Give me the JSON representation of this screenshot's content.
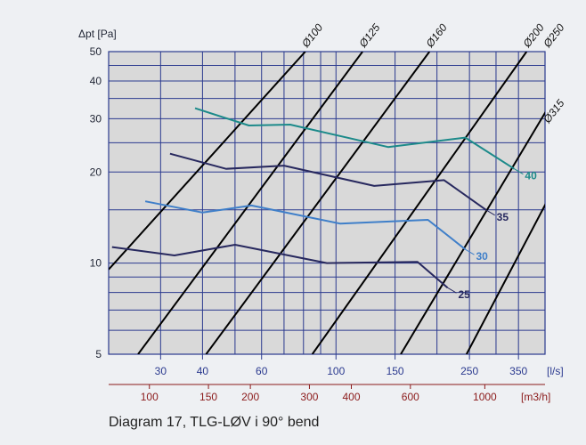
{
  "caption": "Diagram 17, TLG-LØV i 90° bend",
  "colors": {
    "plot_bg": "#d9d9d9",
    "grid": "#2b3a8f",
    "diameter_lines": "#000000",
    "x_ls_ticks": "#2b3a8f",
    "x_m3h_ticks": "#8b1a1a",
    "curve_25": "#27285e",
    "curve_30": "#3f7fc9",
    "curve_35": "#27285e",
    "curve_40": "#1c8a8a"
  },
  "chart_data": {
    "type": "line",
    "ylabel": "Δpt [Pa]",
    "xlabel_ls": "[l/s]",
    "xlabel_m3h": "[m3/h]",
    "x_scale": "log",
    "y_scale": "log",
    "xlim": [
      21,
      420
    ],
    "ylim": [
      5,
      50
    ],
    "y_ticks": [
      5,
      10,
      20,
      30,
      40,
      50
    ],
    "y_grid": [
      6,
      7,
      8,
      9,
      15,
      25,
      35,
      45
    ],
    "x_ticks_ls": [
      30,
      40,
      60,
      100,
      150,
      250,
      350
    ],
    "x_grid_ls": [
      30,
      40,
      50,
      60,
      70,
      80,
      90,
      100,
      150,
      200,
      250,
      300,
      350
    ],
    "x_ticks_m3h": [
      100,
      150,
      200,
      300,
      400,
      600,
      1000
    ],
    "diameters": [
      {
        "label": "Ø100",
        "p1": [
          21,
          9.53
        ],
        "p2": [
          81,
          50
        ]
      },
      {
        "label": "Ø125",
        "p1": [
          25.7,
          5
        ],
        "p2": [
          120,
          50
        ]
      },
      {
        "label": "Ø160",
        "p1": [
          41,
          5
        ],
        "p2": [
          190,
          50
        ]
      },
      {
        "label": "Ø200",
        "p1": [
          85,
          5
        ],
        "p2": [
          370,
          50
        ]
      },
      {
        "label": "Ø250",
        "p1": [
          156,
          5
        ],
        "p2": [
          540,
          50
        ]
      },
      {
        "label": "Ø315",
        "p1": [
          245,
          5
        ],
        "p2": [
          560,
          28.5
        ]
      }
    ],
    "series": [
      {
        "name": "25",
        "color_key": "curve_25",
        "points": [
          [
            21.5,
            11.3
          ],
          [
            33,
            10.6
          ],
          [
            50,
            11.5
          ],
          [
            94,
            10.0
          ],
          [
            175,
            10.1
          ],
          [
            215,
            8.3
          ]
        ]
      },
      {
        "name": "30",
        "color_key": "curve_30",
        "points": [
          [
            27,
            16.0
          ],
          [
            40,
            14.7
          ],
          [
            56,
            15.5
          ],
          [
            103,
            13.5
          ],
          [
            188,
            13.9
          ],
          [
            243,
            11.1
          ]
        ]
      },
      {
        "name": "35",
        "color_key": "curve_35",
        "points": [
          [
            32,
            23.0
          ],
          [
            47,
            20.5
          ],
          [
            70,
            21.0
          ],
          [
            130,
            18.0
          ],
          [
            210,
            18.8
          ],
          [
            280,
            15.0
          ]
        ]
      },
      {
        "name": "40",
        "color_key": "curve_40",
        "points": [
          [
            38,
            32.5
          ],
          [
            55,
            28.5
          ],
          [
            73,
            28.7
          ],
          [
            143,
            24.2
          ],
          [
            243,
            26.0
          ],
          [
            340,
            20.5
          ]
        ]
      }
    ]
  }
}
